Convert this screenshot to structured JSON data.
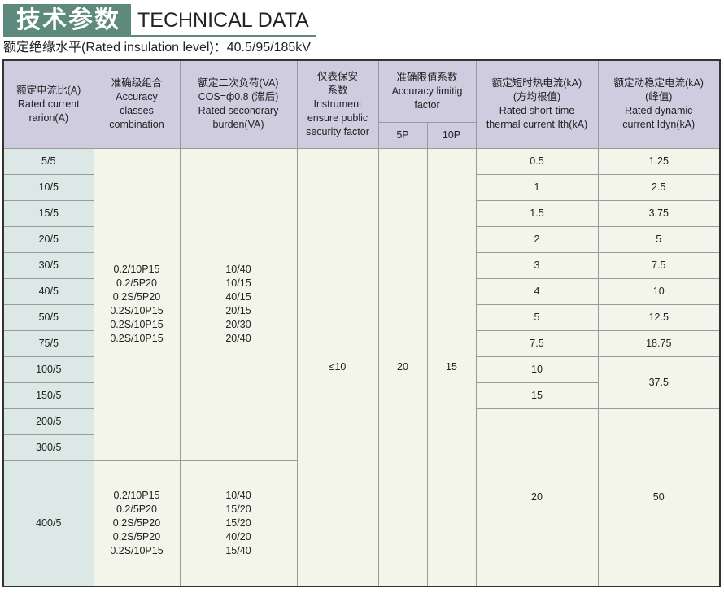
{
  "header": {
    "title_cn": "技术参数",
    "title_en": "TECHNICAL DATA",
    "insulation_level": "额定绝缘水平(Rated insulation level)：40.5/95/185kV"
  },
  "colors": {
    "title_bg": "#5e8a7e",
    "header_bg": "#cfcce0",
    "first_col_bg": "#dce8e5",
    "body_bg": "#f3f4ea"
  },
  "columns": {
    "ratio": [
      "额定电流比(A)",
      "Rated current",
      "rarion(A)"
    ],
    "accuracy": [
      "准确级组合",
      "Accuracy",
      "classes",
      "combination"
    ],
    "burden": [
      "额定二次负荷(VA)",
      "COS=ф0.8 (滞后)",
      "Rated secondrary",
      "burden(VA)"
    ],
    "security": [
      "仪表保安",
      "系数",
      "Instrument",
      "ensure public",
      "security factor"
    ],
    "alf": [
      "准确限值系数",
      "Accuracy limitig",
      "factor"
    ],
    "alf_5p": "5P",
    "alf_10p": "10P",
    "thermal": [
      "额定短时热电流(kA)",
      "(方均根值)",
      "Rated short-time",
      "thermal current Ith(kA)"
    ],
    "dynamic": [
      "额定动稳定电流(kA)",
      "(峰值)",
      "Rated dynamic",
      "current Idyn(kA)"
    ]
  },
  "ratios": [
    "5/5",
    "10/5",
    "15/5",
    "20/5",
    "30/5",
    "40/5",
    "50/5",
    "75/5",
    "100/5",
    "150/5",
    "200/5",
    "300/5",
    "400/5"
  ],
  "accuracy_group1": [
    "0.2/10P15",
    "0.2/5P20",
    "0.2S/5P20",
    "0.2S/10P15",
    "0.2S/10P15",
    "0.2S/10P15"
  ],
  "burden_group1": [
    "10/40",
    "10/15",
    "40/15",
    "20/15",
    "20/30",
    "20/40"
  ],
  "accuracy_group2": [
    "0.2/10P15",
    "0.2/5P20",
    "0.2S/5P20",
    "0.2S/5P20",
    "0.2S/10P15"
  ],
  "burden_group2": [
    "10/40",
    "15/20",
    "15/20",
    "40/20",
    "15/40"
  ],
  "security_factor": "≤10",
  "alf_5p_value": "20",
  "alf_10p_value": "15",
  "thermal": [
    "0.5",
    "1",
    "1.5",
    "2",
    "3",
    "4",
    "5",
    "7.5",
    "10",
    "15",
    "20"
  ],
  "dynamic": [
    "1.25",
    "2.5",
    "3.75",
    "5",
    "7.5",
    "10",
    "12.5",
    "18.75",
    "37.5",
    "50"
  ]
}
